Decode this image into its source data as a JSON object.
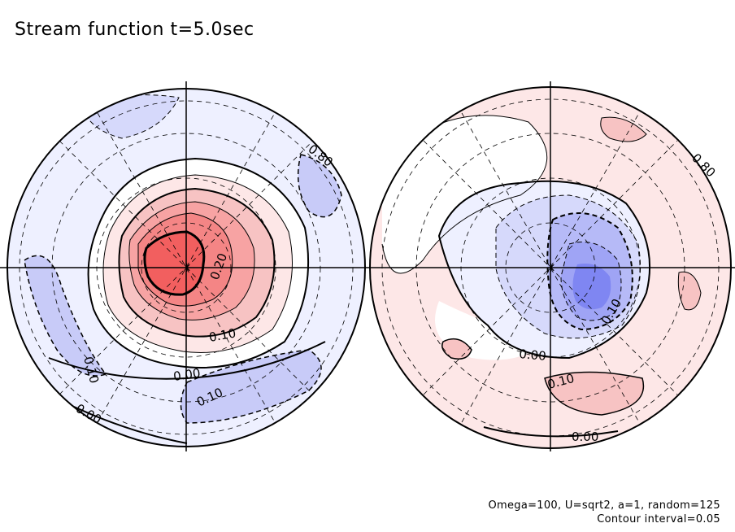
{
  "title": "Stream function t=5.0sec",
  "footer": {
    "params": "Omega=100, U=sqrt2, a=1, random=125",
    "interval": "Contour interval=0.05"
  },
  "colors": {
    "positive_strong": "#f25f5f",
    "positive_mid": "#f7a3a3",
    "positive_weak": "#fde7e7",
    "negative_strong": "#7f86f2",
    "negative_mid": "#c8cbf8",
    "negative_weak": "#eef0ff",
    "line": "#000000"
  },
  "chart_data": [
    {
      "type": "polar-contour",
      "panel": "left",
      "contour_interval": 0.05,
      "labels": [
        "0.80",
        "0.20",
        "0.10",
        "0.00",
        "0.10",
        "0.10",
        "0.00"
      ],
      "extremum": "positive",
      "description_terms": [
        "stream function",
        "positive maximum near pole"
      ]
    },
    {
      "type": "polar-contour",
      "panel": "right",
      "contour_interval": 0.05,
      "labels": [
        "0.80",
        "0.10",
        "0.00",
        "0.10",
        "0.00"
      ],
      "extremum": "negative"
    }
  ]
}
